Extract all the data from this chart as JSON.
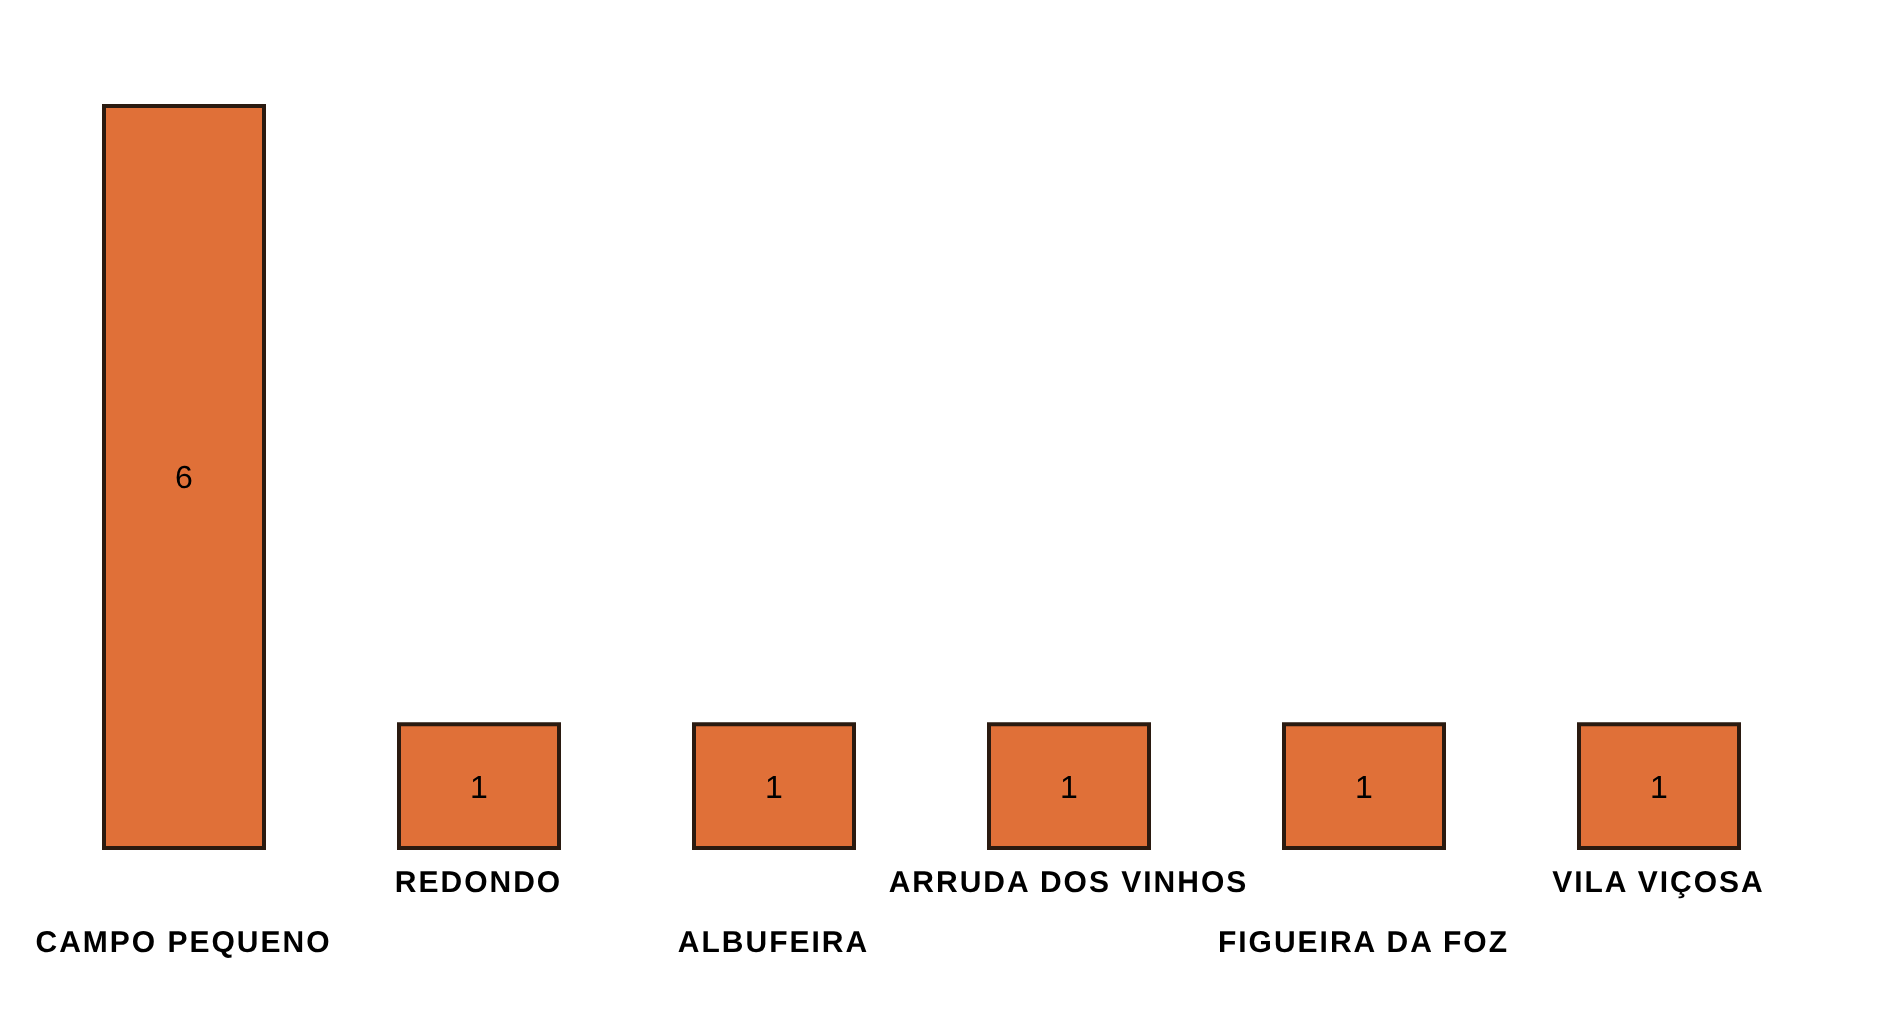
{
  "chart_data": {
    "type": "bar",
    "categories": [
      "CAMPO PEQUENO",
      "REDONDO",
      "ALBUFEIRA",
      "ARRUDA DOS VINHOS",
      "FIGUEIRA DA FOZ",
      "VILA VIÇOSA"
    ],
    "values": [
      6,
      1,
      1,
      1,
      1,
      1
    ],
    "color": "#e07038",
    "data_labels": true,
    "grid": false,
    "legend": false
  }
}
